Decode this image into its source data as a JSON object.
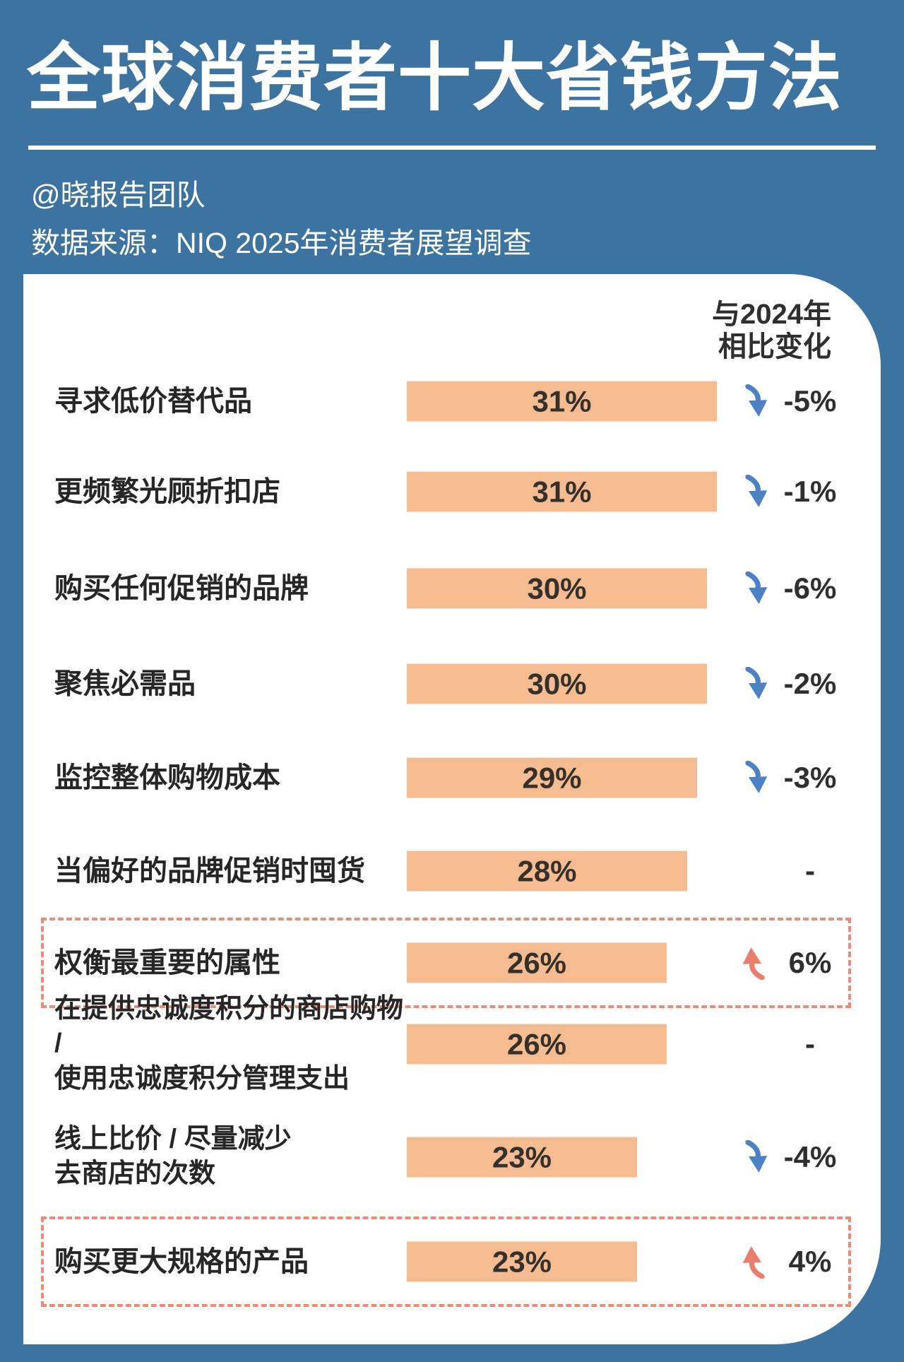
{
  "page": {
    "title": "全球消费者十大省钱方法",
    "credit": "@晓报告团队",
    "source": "数据来源：NIQ 2025年消费者展望调查"
  },
  "column_header": {
    "line1": "与2024年",
    "line2": "相比变化"
  },
  "chart_data": {
    "type": "bar",
    "orientation": "horizontal",
    "title": "全球消费者十大省钱方法",
    "source": "数据来源：NIQ 2025年消费者展望调查",
    "value_suffix": "%",
    "xlim": [
      0,
      31
    ],
    "grid": false,
    "legend": false,
    "change_column_header": "与2024年相比变化",
    "categories": [
      "寻求低价替代品",
      "更频繁光顾折扣店",
      "购买任何促销的品牌",
      "聚焦必需品",
      "监控整体购物成本",
      "当偏好的品牌促销时囤货",
      "权衡最重要的属性",
      "在提供忠诚度积分的商店购物 / 使用忠诚度积分管理支出",
      "线上比价 / 尽量减少去商店的次数",
      "购买更大规格的产品"
    ],
    "values": [
      31,
      31,
      30,
      30,
      29,
      28,
      26,
      26,
      23,
      23
    ],
    "change_vs_2024": [
      -5,
      -1,
      -6,
      -2,
      -3,
      null,
      6,
      null,
      -4,
      4
    ],
    "highlighted_rows": [
      "权衡最重要的属性",
      "购买更大规格的产品"
    ]
  },
  "rows": [
    {
      "label_lines": [
        "寻求低价替代品"
      ],
      "value": 31,
      "value_label": "31%",
      "trend": "down",
      "change_label": "-5%",
      "highlighted": false
    },
    {
      "label_lines": [
        "更频繁光顾折扣店"
      ],
      "value": 31,
      "value_label": "31%",
      "trend": "down",
      "change_label": "-1%",
      "highlighted": false
    },
    {
      "label_lines": [
        "购买任何促销的品牌"
      ],
      "value": 30,
      "value_label": "30%",
      "trend": "down",
      "change_label": "-6%",
      "highlighted": false
    },
    {
      "label_lines": [
        "聚焦必需品"
      ],
      "value": 30,
      "value_label": "30%",
      "trend": "down",
      "change_label": "-2%",
      "highlighted": false
    },
    {
      "label_lines": [
        "监控整体购物成本"
      ],
      "value": 29,
      "value_label": "29%",
      "trend": "down",
      "change_label": "-3%",
      "highlighted": false
    },
    {
      "label_lines": [
        "当偏好的品牌促销时囤货"
      ],
      "value": 28,
      "value_label": "28%",
      "trend": "none",
      "change_label": "-",
      "highlighted": false
    },
    {
      "label_lines": [
        "权衡最重要的属性"
      ],
      "value": 26,
      "value_label": "26%",
      "trend": "up",
      "change_label": "6%",
      "highlighted": true
    },
    {
      "label_lines": [
        "在提供忠诚度积分的商店购物 /",
        "使用忠诚度积分管理支出"
      ],
      "value": 26,
      "value_label": "26%",
      "trend": "none",
      "change_label": "-",
      "highlighted": false
    },
    {
      "label_lines": [
        "线上比价 / 尽量减少",
        "去商店的次数"
      ],
      "value": 23,
      "value_label": "23%",
      "trend": "down",
      "change_label": "-4%",
      "highlighted": false
    },
    {
      "label_lines": [
        "购买更大规格的产品"
      ],
      "value": 23,
      "value_label": "23%",
      "trend": "up",
      "change_label": "4%",
      "highlighted": true
    }
  ],
  "colors": {
    "background": "#3C73A0",
    "card": "#FFFFFF",
    "bar": "#F5BC92",
    "down_arrow": "#4C81C5",
    "up_arrow": "#E87F6C",
    "highlight_border": "#EC8C77",
    "text_dark": "#262626"
  },
  "icons": {
    "down": "down-arrow-icon",
    "up": "up-arrow-icon"
  }
}
